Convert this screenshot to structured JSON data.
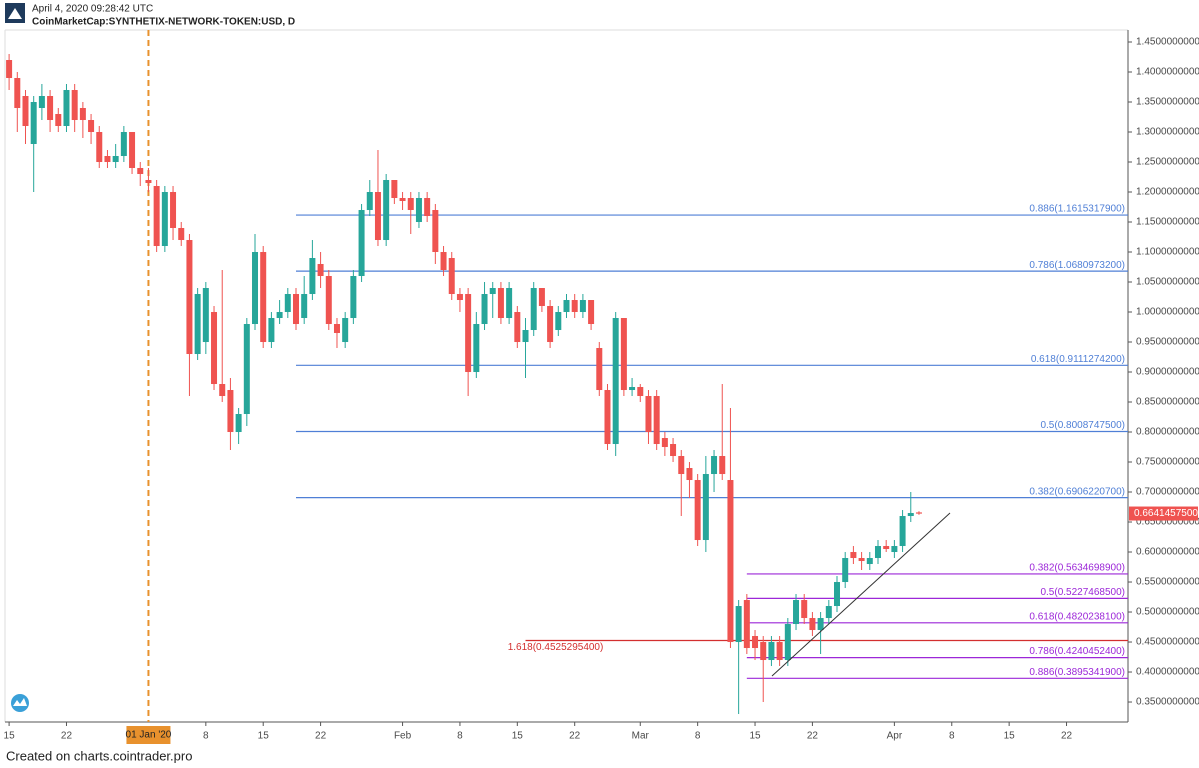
{
  "header": {
    "timestamp": "April 4, 2020 09:28:42 UTC",
    "symbol": "CoinMarketCap:SYNTHETIX-NETWORK-TOKEN:USD, D"
  },
  "footer": "Created on charts.cointrader.pro",
  "chart_data": {
    "type": "candlestick",
    "up_color": "#26a69a",
    "down_color": "#ef5350",
    "open": [
      1.42,
      1.39,
      1.36,
      1.28,
      1.34,
      1.36,
      1.33,
      1.31,
      1.37,
      1.34,
      1.32,
      1.3,
      1.26,
      1.25,
      1.26,
      1.3,
      1.24,
      1.22,
      1.21,
      1.11,
      1.2,
      1.14,
      1.12,
      0.93,
      0.95,
      1.0,
      0.88,
      0.87,
      0.8,
      0.83,
      0.98,
      1.1,
      0.95,
      0.99,
      1.0,
      1.03,
      0.99,
      1.03,
      1.08,
      1.06,
      0.98,
      0.95,
      0.99,
      1.06,
      1.17,
      1.2,
      1.12,
      1.22,
      1.19,
      1.19,
      1.15,
      1.19,
      1.17,
      1.1,
      1.09,
      1.03,
      1.03,
      0.9,
      0.98,
      1.03,
      1.04,
      0.99,
      1.0,
      0.95,
      0.97,
      1.04,
      1.01,
      0.97,
      1.0,
      1.02,
      1.0,
      1.02,
      0.94,
      0.87,
      0.78,
      0.99,
      0.87,
      0.875,
      0.86,
      0.86,
      0.79,
      0.78,
      0.76,
      0.74,
      0.72,
      0.62,
      0.73,
      0.76,
      0.72,
      0.45,
      0.52,
      0.46,
      0.45,
      0.42,
      0.45,
      0.42,
      0.48,
      0.52,
      0.49,
      0.47,
      0.49,
      0.51,
      0.55,
      0.6,
      0.59,
      0.58,
      0.59,
      0.61,
      0.6,
      0.61,
      0.66,
      0.666
    ],
    "high": [
      1.43,
      1.4,
      1.37,
      1.36,
      1.38,
      1.37,
      1.34,
      1.38,
      1.38,
      1.35,
      1.33,
      1.31,
      1.27,
      1.28,
      1.31,
      1.3,
      1.25,
      1.24,
      1.22,
      1.21,
      1.21,
      1.15,
      1.13,
      1.04,
      1.05,
      1.01,
      1.07,
      0.89,
      0.84,
      0.99,
      1.13,
      1.11,
      1.0,
      1.02,
      1.04,
      1.04,
      1.06,
      1.12,
      1.1,
      1.07,
      0.99,
      1.0,
      1.07,
      1.18,
      1.22,
      1.27,
      1.23,
      1.22,
      1.2,
      1.2,
      1.2,
      1.2,
      1.18,
      1.11,
      1.1,
      1.04,
      1.04,
      1.0,
      1.05,
      1.05,
      1.05,
      1.05,
      1.01,
      0.99,
      1.05,
      1.04,
      1.02,
      1.01,
      1.03,
      1.03,
      1.03,
      1.02,
      0.95,
      0.88,
      1.0,
      0.99,
      0.89,
      0.88,
      0.87,
      0.87,
      0.8,
      0.79,
      0.77,
      0.75,
      0.73,
      0.76,
      0.77,
      0.88,
      0.84,
      0.52,
      0.53,
      0.47,
      0.46,
      0.46,
      0.46,
      0.49,
      0.53,
      0.53,
      0.5,
      0.5,
      0.52,
      0.56,
      0.6,
      0.61,
      0.6,
      0.6,
      0.62,
      0.62,
      0.62,
      0.67,
      0.7,
      0.668
    ],
    "low": [
      1.37,
      1.3,
      1.28,
      1.2,
      1.32,
      1.3,
      1.3,
      1.3,
      1.3,
      1.29,
      1.28,
      1.24,
      1.24,
      1.24,
      1.25,
      1.23,
      1.21,
      1.2,
      1.1,
      1.1,
      1.12,
      1.11,
      0.86,
      0.92,
      0.93,
      0.87,
      0.85,
      0.77,
      0.78,
      0.81,
      0.97,
      0.94,
      0.94,
      0.98,
      0.99,
      0.97,
      0.98,
      1.02,
      1.04,
      0.97,
      0.94,
      0.94,
      0.98,
      1.05,
      1.16,
      1.11,
      1.11,
      1.18,
      1.17,
      1.13,
      1.14,
      1.15,
      1.08,
      1.06,
      1.02,
      1.0,
      0.86,
      0.89,
      0.97,
      0.99,
      0.98,
      0.98,
      0.94,
      0.89,
      0.96,
      1.0,
      0.94,
      0.96,
      0.99,
      0.99,
      0.99,
      0.97,
      0.86,
      0.77,
      0.76,
      0.86,
      0.86,
      0.85,
      0.78,
      0.77,
      0.76,
      0.75,
      0.66,
      0.69,
      0.61,
      0.6,
      0.7,
      0.72,
      0.44,
      0.33,
      0.43,
      0.42,
      0.35,
      0.41,
      0.41,
      0.41,
      0.47,
      0.48,
      0.46,
      0.43,
      0.48,
      0.5,
      0.54,
      0.58,
      0.57,
      0.57,
      0.58,
      0.6,
      0.59,
      0.6,
      0.65,
      0.662
    ],
    "close": [
      1.39,
      1.34,
      1.31,
      1.35,
      1.36,
      1.32,
      1.31,
      1.37,
      1.32,
      1.32,
      1.3,
      1.25,
      1.25,
      1.26,
      1.3,
      1.24,
      1.23,
      1.215,
      1.11,
      1.2,
      1.14,
      1.12,
      0.93,
      1.03,
      1.04,
      0.88,
      0.86,
      0.8,
      0.83,
      0.98,
      1.1,
      0.95,
      0.99,
      1.0,
      1.03,
      0.98,
      1.03,
      1.09,
      1.06,
      0.98,
      0.965,
      0.99,
      1.06,
      1.17,
      1.2,
      1.12,
      1.22,
      1.19,
      1.185,
      1.17,
      1.19,
      1.16,
      1.1,
      1.07,
      1.03,
      1.02,
      0.9,
      0.98,
      1.03,
      1.04,
      0.99,
      1.04,
      0.95,
      0.97,
      1.04,
      1.01,
      0.95,
      1.0,
      1.02,
      1.0,
      1.02,
      0.98,
      0.87,
      0.78,
      0.99,
      0.87,
      0.875,
      0.86,
      0.8,
      0.78,
      0.775,
      0.76,
      0.73,
      0.72,
      0.62,
      0.73,
      0.76,
      0.73,
      0.45,
      0.51,
      0.44,
      0.44,
      0.42,
      0.45,
      0.42,
      0.48,
      0.52,
      0.49,
      0.47,
      0.49,
      0.51,
      0.55,
      0.59,
      0.59,
      0.585,
      0.59,
      0.61,
      0.605,
      0.61,
      0.66,
      0.665,
      0.664
    ],
    "xlim": [
      -0.5,
      136.5
    ],
    "xticks": [
      {
        "value": 0,
        "label": "15"
      },
      {
        "value": 7,
        "label": "22"
      },
      {
        "value": 24,
        "label": "8"
      },
      {
        "value": 31,
        "label": "15"
      },
      {
        "value": 38,
        "label": "22"
      },
      {
        "value": 48,
        "label": "Feb"
      },
      {
        "value": 55,
        "label": "8"
      },
      {
        "value": 62,
        "label": "15"
      },
      {
        "value": 69,
        "label": "22"
      },
      {
        "value": 77,
        "label": "Mar"
      },
      {
        "value": 84,
        "label": "8"
      },
      {
        "value": 91,
        "label": "15"
      },
      {
        "value": 98,
        "label": "22"
      },
      {
        "value": 108,
        "label": "Apr"
      },
      {
        "value": 115,
        "label": "8"
      },
      {
        "value": 122,
        "label": "15"
      },
      {
        "value": 129,
        "label": "22"
      }
    ],
    "marker_date": {
      "value": 17,
      "label": "01 Jan '20",
      "color": "#e8912d"
    },
    "ylim": [
      0.3167,
      1.47
    ],
    "yticks": [
      {
        "value": 0.35,
        "label": "0.3500000000"
      },
      {
        "value": 0.4,
        "label": "0.4000000000"
      },
      {
        "value": 0.45,
        "label": "0.4500000000"
      },
      {
        "value": 0.5,
        "label": "0.5000000000"
      },
      {
        "value": 0.55,
        "label": "0.5500000000"
      },
      {
        "value": 0.6,
        "label": "0.6000000000"
      },
      {
        "value": 0.65,
        "label": "0.6500000000"
      },
      {
        "value": 0.7,
        "label": "0.7000000000"
      },
      {
        "value": 0.75,
        "label": "0.7500000000"
      },
      {
        "value": 0.8,
        "label": "0.8000000000"
      },
      {
        "value": 0.85,
        "label": "0.8500000000"
      },
      {
        "value": 0.9,
        "label": "0.9000000000"
      },
      {
        "value": 0.95,
        "label": "0.9500000000"
      },
      {
        "value": 1.0,
        "label": "1.0000000000"
      },
      {
        "value": 1.05,
        "label": "1.0500000000"
      },
      {
        "value": 1.1,
        "label": "1.1000000000"
      },
      {
        "value": 1.15,
        "label": "1.1500000000"
      },
      {
        "value": 1.2,
        "label": "1.2000000000"
      },
      {
        "value": 1.25,
        "label": "1.2500000000"
      },
      {
        "value": 1.3,
        "label": "1.3000000000"
      },
      {
        "value": 1.35,
        "label": "1.3500000000"
      },
      {
        "value": 1.4,
        "label": "1.4000000000"
      },
      {
        "value": 1.45,
        "label": "1.4500000000"
      }
    ],
    "last_price": {
      "value": 0.66414575,
      "label": "0.6641457500",
      "color": "#ef5350"
    },
    "fib_sets": [
      {
        "color": "#4f7fd6",
        "levels": [
          {
            "value": 1.16153179,
            "label": "0.886(1.1615317900)"
          },
          {
            "value": 1.06809732,
            "label": "0.786(1.0680973200)"
          },
          {
            "value": 0.91112742,
            "label": "0.618(0.9111274200)"
          },
          {
            "value": 0.80087475,
            "label": "0.5(0.8008747500)"
          },
          {
            "value": 0.69062207,
            "label": "0.382(0.6906220700)"
          }
        ]
      },
      {
        "color": "#9c27d8",
        "levels": [
          {
            "value": 0.56346989,
            "label": "0.382(0.5634698900)"
          },
          {
            "value": 0.52274685,
            "label": "0.5(0.5227468500)"
          },
          {
            "value": 0.48202381,
            "label": "0.618(0.4820238100)"
          },
          {
            "value": 0.42404524,
            "label": "0.786(0.4240452400)"
          },
          {
            "value": 0.38953419,
            "label": "0.886(0.3895341900)"
          }
        ]
      },
      {
        "color": "#d32f2f",
        "levels": [
          {
            "value": 0.45252954,
            "label": "1.618(0.4525295400)"
          }
        ]
      }
    ]
  }
}
